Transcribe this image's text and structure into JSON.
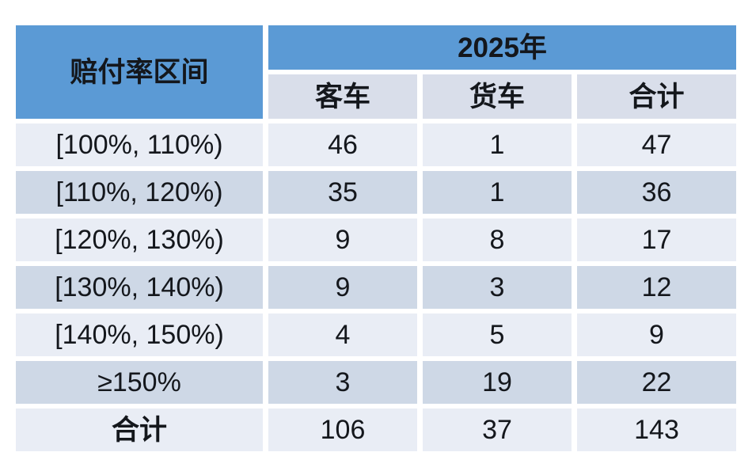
{
  "colors": {
    "header_blue": "#5B9AD5",
    "subheader_bg": "#D9DEEA",
    "row_light": "#E9EDF5",
    "row_dark": "#CED8E6",
    "text": "#14171C",
    "background": "#FFFFFF"
  },
  "table": {
    "corner_label": "赔付率区间",
    "year_label": "2025年",
    "columns": [
      "客车",
      "货车",
      "合计"
    ],
    "rows": [
      {
        "interval": "[100%, 110%)",
        "passenger": "46",
        "truck": "1",
        "total": "47"
      },
      {
        "interval": "[110%, 120%)",
        "passenger": "35",
        "truck": "1",
        "total": "36"
      },
      {
        "interval": "[120%, 130%)",
        "passenger": "9",
        "truck": "8",
        "total": "17"
      },
      {
        "interval": "[130%, 140%)",
        "passenger": "9",
        "truck": "3",
        "total": "12"
      },
      {
        "interval": "[140%, 150%)",
        "passenger": "4",
        "truck": "5",
        "total": "9"
      },
      {
        "interval": "≥150%",
        "passenger": "3",
        "truck": "19",
        "total": "22"
      },
      {
        "interval": "合计",
        "passenger": "106",
        "truck": "37",
        "total": "143"
      }
    ]
  },
  "chart_data": {
    "type": "table",
    "title": "2025年",
    "row_header": "赔付率区间",
    "columns": [
      "客车",
      "货车",
      "合计"
    ],
    "rows": [
      {
        "赔付率区间": "[100%, 110%)",
        "客车": 46,
        "货车": 1,
        "合计": 47
      },
      {
        "赔付率区间": "[110%, 120%)",
        "客车": 35,
        "货车": 1,
        "合计": 36
      },
      {
        "赔付率区间": "[120%, 130%)",
        "客车": 9,
        "货车": 8,
        "合计": 17
      },
      {
        "赔付率区间": "[130%, 140%)",
        "客车": 9,
        "货车": 3,
        "合计": 12
      },
      {
        "赔付率区间": "[140%, 150%)",
        "客车": 4,
        "货车": 5,
        "合计": 9
      },
      {
        "赔付率区间": "≥150%",
        "客车": 3,
        "货车": 19,
        "合计": 22
      },
      {
        "赔付率区间": "合计",
        "客车": 106,
        "货车": 37,
        "合计": 143
      }
    ]
  }
}
